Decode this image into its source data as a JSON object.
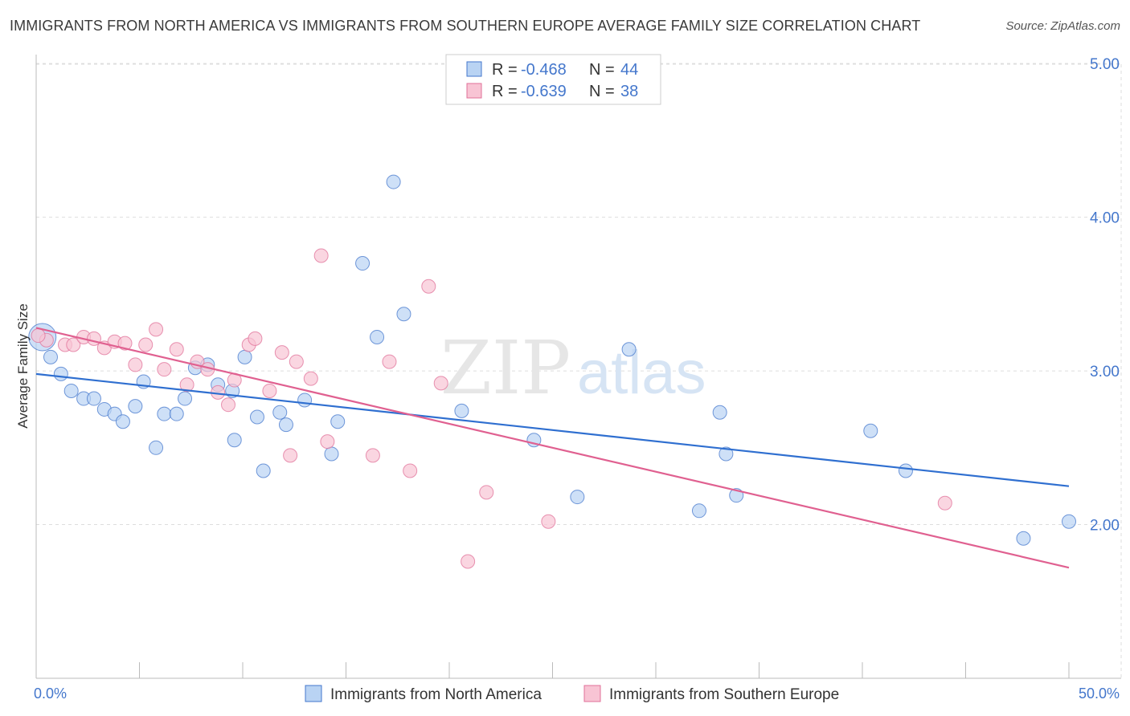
{
  "header": {
    "title": "IMMIGRANTS FROM NORTH AMERICA VS IMMIGRANTS FROM SOUTHERN EUROPE AVERAGE FAMILY SIZE CORRELATION CHART",
    "source": "Source: ZipAtlas.com"
  },
  "watermark": {
    "zip": "ZIP",
    "atlas": "atlas"
  },
  "colors": {
    "blue": "#4477cc",
    "blue_fill": "#b9d3f3",
    "blue_line": "#2f6fd0",
    "pink": "#e07098",
    "pink_fill": "#f8c4d4",
    "pink_line": "#e06090"
  },
  "chart_data": {
    "type": "scatter",
    "title": "IMMIGRANTS FROM NORTH AMERICA VS IMMIGRANTS FROM SOUTHERN EUROPE AVERAGE FAMILY SIZE CORRELATION CHART",
    "ylabel": "Average Family Size",
    "xlabel": "",
    "xlim": [
      0,
      50
    ],
    "ylim": [
      1.0,
      5.1
    ],
    "x_tick_labels": [
      "0.0%",
      "50.0%"
    ],
    "y_ticks": [
      2.0,
      3.0,
      4.0,
      5.0
    ],
    "y_tick_labels": [
      "2.00",
      "3.00",
      "4.00",
      "5.00"
    ],
    "grid": true,
    "legend_stats": [
      {
        "r_label": "R =",
        "r_value": "-0.468",
        "n_label": "N =",
        "n_value": "44"
      },
      {
        "r_label": "R =",
        "r_value": "-0.639",
        "n_label": "N =",
        "n_value": "38"
      }
    ],
    "series": [
      {
        "name": "Immigrants from North America",
        "color": "#4477cc",
        "trend": {
          "x0": 0,
          "y0": 2.98,
          "x1": 50,
          "y1": 2.25
        },
        "points": [
          [
            0.3,
            3.22
          ],
          [
            0.7,
            3.09
          ],
          [
            1.2,
            2.98
          ],
          [
            1.7,
            2.87
          ],
          [
            2.3,
            2.82
          ],
          [
            2.8,
            2.82
          ],
          [
            3.3,
            2.75
          ],
          [
            3.8,
            2.72
          ],
          [
            4.2,
            2.67
          ],
          [
            4.8,
            2.77
          ],
          [
            5.2,
            2.93
          ],
          [
            5.8,
            2.5
          ],
          [
            6.2,
            2.72
          ],
          [
            6.8,
            2.72
          ],
          [
            7.2,
            2.82
          ],
          [
            7.7,
            3.02
          ],
          [
            8.3,
            3.04
          ],
          [
            8.8,
            2.91
          ],
          [
            9.5,
            2.87
          ],
          [
            9.6,
            2.55
          ],
          [
            10.1,
            3.09
          ],
          [
            10.7,
            2.7
          ],
          [
            11.0,
            2.35
          ],
          [
            11.8,
            2.73
          ],
          [
            12.1,
            2.65
          ],
          [
            13.0,
            2.81
          ],
          [
            14.3,
            2.46
          ],
          [
            14.6,
            2.67
          ],
          [
            15.8,
            3.7
          ],
          [
            16.5,
            3.22
          ],
          [
            17.3,
            4.23
          ],
          [
            17.8,
            3.37
          ],
          [
            20.6,
            2.74
          ],
          [
            24.1,
            2.55
          ],
          [
            26.2,
            2.18
          ],
          [
            28.7,
            3.14
          ],
          [
            32.1,
            2.09
          ],
          [
            33.1,
            2.73
          ],
          [
            33.4,
            2.46
          ],
          [
            33.9,
            2.19
          ],
          [
            40.4,
            2.61
          ],
          [
            42.1,
            2.35
          ],
          [
            47.8,
            1.91
          ],
          [
            50.0,
            2.02
          ]
        ]
      },
      {
        "name": "Immigrants from Southern Europe",
        "color": "#e07098",
        "trend": {
          "x0": 0,
          "y0": 3.28,
          "x1": 50,
          "y1": 1.72
        },
        "points": [
          [
            0.5,
            3.2
          ],
          [
            1.4,
            3.17
          ],
          [
            1.8,
            3.17
          ],
          [
            2.3,
            3.22
          ],
          [
            2.8,
            3.21
          ],
          [
            3.3,
            3.15
          ],
          [
            3.8,
            3.19
          ],
          [
            4.3,
            3.18
          ],
          [
            4.8,
            3.04
          ],
          [
            5.3,
            3.17
          ],
          [
            5.8,
            3.27
          ],
          [
            6.2,
            3.01
          ],
          [
            6.8,
            3.14
          ],
          [
            7.3,
            2.91
          ],
          [
            7.8,
            3.06
          ],
          [
            8.3,
            3.01
          ],
          [
            8.8,
            2.86
          ],
          [
            9.3,
            2.78
          ],
          [
            9.6,
            2.94
          ],
          [
            10.3,
            3.17
          ],
          [
            10.6,
            3.21
          ],
          [
            11.3,
            2.87
          ],
          [
            11.9,
            3.12
          ],
          [
            12.3,
            2.45
          ],
          [
            12.6,
            3.06
          ],
          [
            13.3,
            2.95
          ],
          [
            13.8,
            3.75
          ],
          [
            14.1,
            2.54
          ],
          [
            16.3,
            2.45
          ],
          [
            17.1,
            3.06
          ],
          [
            18.1,
            2.35
          ],
          [
            19.0,
            3.55
          ],
          [
            19.6,
            2.92
          ],
          [
            20.9,
            1.76
          ],
          [
            21.8,
            2.21
          ],
          [
            24.8,
            2.02
          ],
          [
            44.0,
            2.14
          ],
          [
            0.1,
            3.23
          ]
        ]
      }
    ]
  }
}
